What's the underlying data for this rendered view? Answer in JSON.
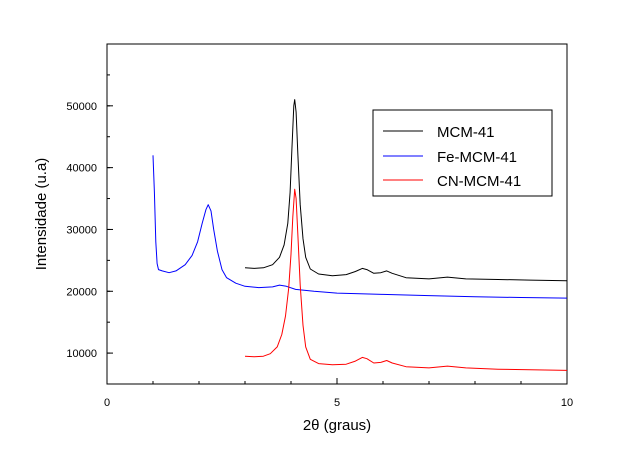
{
  "chart_data": {
    "type": "line",
    "xlabel": "2θ (graus)",
    "ylabel": "Intensidade (u.a)",
    "xlim": [
      0,
      10
    ],
    "ylim": [
      5000,
      60000
    ],
    "x_ticks": [
      {
        "value": 0,
        "label": "0"
      },
      {
        "value": 5,
        "label": "5"
      },
      {
        "value": 10,
        "label": "10"
      }
    ],
    "y_ticks": [
      {
        "value": 10000,
        "label": "10000"
      },
      {
        "value": 20000,
        "label": "20000"
      },
      {
        "value": 30000,
        "label": "30000"
      },
      {
        "value": 40000,
        "label": "40000"
      },
      {
        "value": 50000,
        "label": "50000"
      }
    ],
    "x_minor_step": 1,
    "y_minor_step": 5000,
    "grid": false,
    "legend_position": "top-right",
    "series": [
      {
        "name": "MCM-41",
        "color": "#000000",
        "points": [
          [
            3.0,
            23800
          ],
          [
            3.2,
            23700
          ],
          [
            3.4,
            23800
          ],
          [
            3.6,
            24300
          ],
          [
            3.75,
            25500
          ],
          [
            3.85,
            27500
          ],
          [
            3.93,
            31000
          ],
          [
            3.98,
            36000
          ],
          [
            4.02,
            43000
          ],
          [
            4.06,
            50000
          ],
          [
            4.08,
            51000
          ],
          [
            4.11,
            49000
          ],
          [
            4.15,
            42000
          ],
          [
            4.2,
            34000
          ],
          [
            4.26,
            28500
          ],
          [
            4.32,
            25500
          ],
          [
            4.42,
            23600
          ],
          [
            4.6,
            22800
          ],
          [
            4.9,
            22500
          ],
          [
            5.2,
            22700
          ],
          [
            5.4,
            23200
          ],
          [
            5.55,
            23700
          ],
          [
            5.65,
            23500
          ],
          [
            5.8,
            22900
          ],
          [
            5.95,
            23000
          ],
          [
            6.08,
            23300
          ],
          [
            6.2,
            22900
          ],
          [
            6.5,
            22200
          ],
          [
            7.0,
            22000
          ],
          [
            7.4,
            22300
          ],
          [
            7.8,
            22000
          ],
          [
            8.5,
            21900
          ],
          [
            9.2,
            21800
          ],
          [
            10.0,
            21700
          ]
        ]
      },
      {
        "name": "Fe-MCM-41",
        "color": "#0000ff",
        "points": [
          [
            1.0,
            42000
          ],
          [
            1.03,
            36000
          ],
          [
            1.06,
            28000
          ],
          [
            1.09,
            24500
          ],
          [
            1.12,
            23500
          ],
          [
            1.2,
            23300
          ],
          [
            1.35,
            23000
          ],
          [
            1.5,
            23300
          ],
          [
            1.7,
            24300
          ],
          [
            1.85,
            25800
          ],
          [
            1.97,
            28000
          ],
          [
            2.07,
            31000
          ],
          [
            2.15,
            33200
          ],
          [
            2.2,
            34000
          ],
          [
            2.26,
            33000
          ],
          [
            2.32,
            30000
          ],
          [
            2.4,
            26500
          ],
          [
            2.5,
            23500
          ],
          [
            2.6,
            22200
          ],
          [
            2.8,
            21300
          ],
          [
            3.0,
            20800
          ],
          [
            3.3,
            20600
          ],
          [
            3.6,
            20700
          ],
          [
            3.75,
            21000
          ],
          [
            3.9,
            20800
          ],
          [
            4.1,
            20300
          ],
          [
            4.5,
            20000
          ],
          [
            5.0,
            19700
          ],
          [
            5.5,
            19600
          ],
          [
            6.0,
            19500
          ],
          [
            7.0,
            19300
          ],
          [
            8.0,
            19100
          ],
          [
            9.0,
            19000
          ],
          [
            10.0,
            18900
          ]
        ]
      },
      {
        "name": "CN-MCM-41",
        "color": "#ff0000",
        "points": [
          [
            3.0,
            9500
          ],
          [
            3.2,
            9400
          ],
          [
            3.4,
            9500
          ],
          [
            3.55,
            9900
          ],
          [
            3.7,
            11000
          ],
          [
            3.8,
            13000
          ],
          [
            3.88,
            16000
          ],
          [
            3.95,
            20500
          ],
          [
            4.0,
            26000
          ],
          [
            4.04,
            32000
          ],
          [
            4.08,
            36500
          ],
          [
            4.11,
            35000
          ],
          [
            4.15,
            29000
          ],
          [
            4.2,
            21000
          ],
          [
            4.26,
            14500
          ],
          [
            4.32,
            11000
          ],
          [
            4.42,
            9000
          ],
          [
            4.6,
            8300
          ],
          [
            4.9,
            8100
          ],
          [
            5.2,
            8200
          ],
          [
            5.4,
            8700
          ],
          [
            5.55,
            9300
          ],
          [
            5.65,
            9100
          ],
          [
            5.8,
            8400
          ],
          [
            5.95,
            8500
          ],
          [
            6.08,
            8800
          ],
          [
            6.2,
            8400
          ],
          [
            6.5,
            7800
          ],
          [
            7.0,
            7600
          ],
          [
            7.4,
            7900
          ],
          [
            7.8,
            7600
          ],
          [
            8.5,
            7400
          ],
          [
            9.2,
            7300
          ],
          [
            10.0,
            7200
          ]
        ]
      }
    ]
  }
}
